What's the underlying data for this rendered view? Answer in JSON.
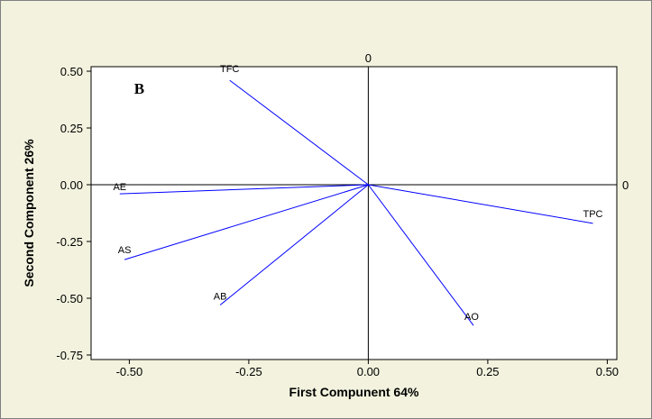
{
  "chart_data": {
    "type": "line",
    "panel_label": "B",
    "xlabel": "First Compunent 64%",
    "ylabel": "Second Component 26%",
    "xlim": [
      -0.58,
      0.52
    ],
    "ylim": [
      -0.77,
      0.52
    ],
    "x_ticks": [
      -0.5,
      -0.25,
      0.0,
      0.25,
      0.5
    ],
    "x_tick_labels": [
      "-0.50",
      "-0.25",
      "0.00",
      "0.25",
      "0.50"
    ],
    "y_ticks": [
      0.5,
      0.25,
      0.0,
      -0.25,
      -0.5,
      -0.75
    ],
    "y_tick_labels": [
      "0.50",
      "0.25",
      "0.00",
      "-0.25",
      "-0.50",
      "-0.75"
    ],
    "reference_lines": {
      "x": 0,
      "y": 0,
      "x_label": "0",
      "y_label": "0"
    },
    "grid": false,
    "colors": {
      "vectors": "#0000ff",
      "reference": "#000000",
      "background": "#f2f2de",
      "plot": "#ffffff"
    },
    "vectors": [
      {
        "label": "TFC",
        "x": -0.29,
        "y": 0.46
      },
      {
        "label": "AE",
        "x": -0.52,
        "y": -0.04
      },
      {
        "label": "AS",
        "x": -0.51,
        "y": -0.33
      },
      {
        "label": "AB",
        "x": -0.31,
        "y": -0.53
      },
      {
        "label": "AO",
        "x": 0.22,
        "y": -0.62
      },
      {
        "label": "TPC",
        "x": 0.47,
        "y": -0.17
      }
    ]
  }
}
